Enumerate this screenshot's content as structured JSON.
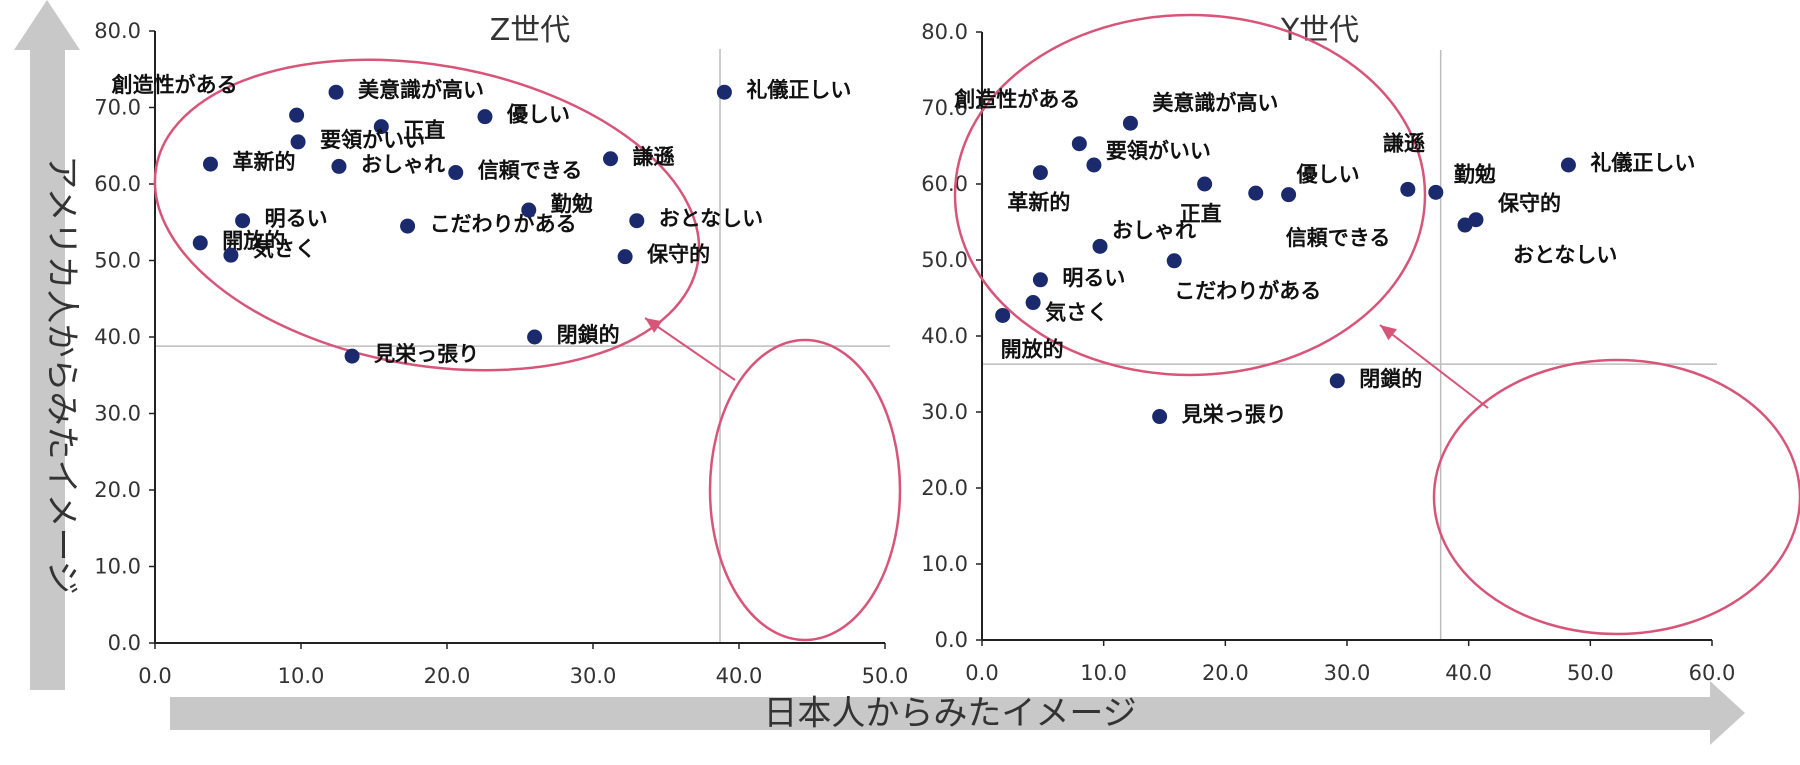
{
  "axis_titles": {
    "y": "アメリカ人からみたイメージ",
    "x": "日本人からみたイメージ"
  },
  "colors": {
    "point": "#1a2a6c",
    "ellipse": "#d8557a",
    "axis_arrow": "#c8c8c8",
    "ref_line": "#bdbdbd"
  },
  "chart_data": [
    {
      "type": "scatter",
      "title": "Z世代",
      "xlim": [
        0,
        50
      ],
      "ylim": [
        0,
        80
      ],
      "x_ticks": [
        "0.0",
        "10.0",
        "20.0",
        "30.0",
        "40.0",
        "50.0"
      ],
      "y_ticks": [
        "0.0",
        "10.0",
        "20.0",
        "30.0",
        "40.0",
        "50.0",
        "60.0",
        "70.0",
        "80.0"
      ],
      "reference_lines": {
        "x": 38.7,
        "y": 38.8
      },
      "points": [
        {
          "label": "創造性がある",
          "x": 9.7,
          "y": 69.0
        },
        {
          "label": "美意識が高い",
          "x": 12.4,
          "y": 72.0
        },
        {
          "label": "正直",
          "x": 15.5,
          "y": 67.5
        },
        {
          "label": "優しい",
          "x": 22.6,
          "y": 68.8
        },
        {
          "label": "要領がいい",
          "x": 9.8,
          "y": 65.5
        },
        {
          "label": "革新的",
          "x": 3.8,
          "y": 62.6
        },
        {
          "label": "おしゃれ",
          "x": 12.6,
          "y": 62.3
        },
        {
          "label": "信頼できる",
          "x": 20.6,
          "y": 61.5
        },
        {
          "label": "謙遜",
          "x": 31.2,
          "y": 63.3
        },
        {
          "label": "礼儀正しい",
          "x": 39.0,
          "y": 72.0
        },
        {
          "label": "明るい",
          "x": 6.0,
          "y": 55.2
        },
        {
          "label": "こだわりがある",
          "x": 17.3,
          "y": 54.5
        },
        {
          "label": "勤勉",
          "x": 25.6,
          "y": 56.6
        },
        {
          "label": "おとなしい",
          "x": 33.0,
          "y": 55.2
        },
        {
          "label": "開放的",
          "x": 3.1,
          "y": 52.3
        },
        {
          "label": "気さく",
          "x": 5.2,
          "y": 50.7
        },
        {
          "label": "保守的",
          "x": 32.2,
          "y": 50.5
        },
        {
          "label": "閉鎖的",
          "x": 26.0,
          "y": 40.0
        },
        {
          "label": "見栄っ張り",
          "x": 13.5,
          "y": 37.5
        }
      ]
    },
    {
      "type": "scatter",
      "title": "Y世代",
      "xlim": [
        0,
        60
      ],
      "ylim": [
        0,
        80
      ],
      "x_ticks": [
        "0.0",
        "10.0",
        "20.0",
        "30.0",
        "40.0",
        "50.0",
        "60.0"
      ],
      "y_ticks": [
        "0.0",
        "10.0",
        "20.0",
        "30.0",
        "40.0",
        "50.0",
        "60.0",
        "70.0",
        "80.0"
      ],
      "reference_lines": {
        "x": 37.7,
        "y": 36.3
      },
      "points": [
        {
          "label": "創造性がある",
          "x": 8.0,
          "y": 65.3
        },
        {
          "label": "美意識が高い",
          "x": 12.2,
          "y": 68.0
        },
        {
          "label": "要領がいい",
          "x": 9.2,
          "y": 62.5
        },
        {
          "label": "革新的",
          "x": 4.8,
          "y": 61.5
        },
        {
          "label": "正直",
          "x": 18.3,
          "y": 60.0
        },
        {
          "label": "優しい",
          "x": 25.2,
          "y": 58.6
        },
        {
          "label": "信頼できる",
          "x": 22.5,
          "y": 58.8
        },
        {
          "label": "謙遜",
          "x": 35.0,
          "y": 59.3
        },
        {
          "label": "勤勉",
          "x": 37.3,
          "y": 58.9
        },
        {
          "label": "礼儀正しい",
          "x": 48.2,
          "y": 62.5
        },
        {
          "label": "保守的",
          "x": 40.6,
          "y": 55.3
        },
        {
          "label": "おとなしい",
          "x": 39.7,
          "y": 54.6
        },
        {
          "label": "おしゃれ",
          "x": 9.7,
          "y": 51.8
        },
        {
          "label": "こだわりがある",
          "x": 15.8,
          "y": 49.9
        },
        {
          "label": "明るい",
          "x": 4.8,
          "y": 47.4
        },
        {
          "label": "気さく",
          "x": 4.2,
          "y": 44.4
        },
        {
          "label": "開放的",
          "x": 1.7,
          "y": 42.7
        },
        {
          "label": "閉鎖的",
          "x": 29.2,
          "y": 34.1
        },
        {
          "label": "見栄っ張り",
          "x": 14.6,
          "y": 29.4
        }
      ]
    }
  ]
}
